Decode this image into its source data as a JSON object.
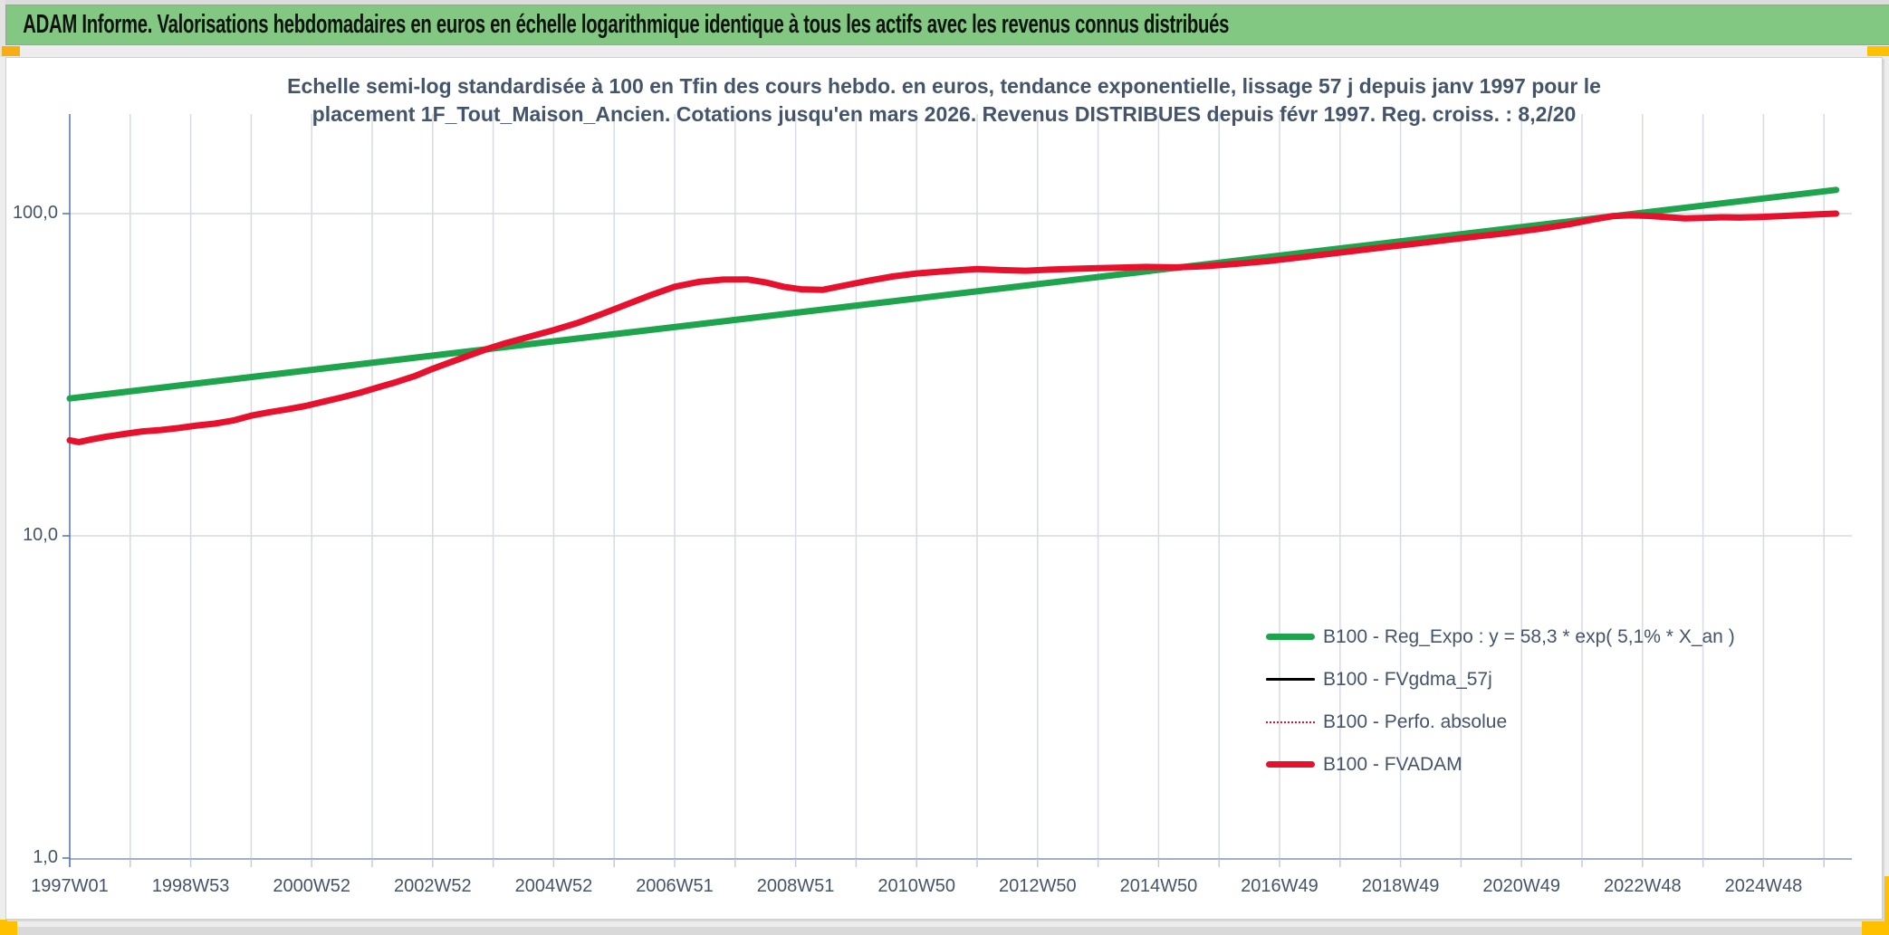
{
  "banner": {
    "text": "ADAM Informe. Valorisations hebdomadaires en euros en échelle logarithmique identique à tous les actifs avec les revenus connus distribués"
  },
  "colors": {
    "banner_bg": "#82C882",
    "accent_orange": "#F6AE13",
    "accent_yellow": "#FFC000",
    "chart_text": "#44546A",
    "axis_line": "#4E72B8",
    "x_axis_line": "#8496B0",
    "gridline": "#D6DBE4",
    "tick_minor": "#C3CCD9",
    "series_green": "#1EA44C",
    "series_red": "#E8112D",
    "series_black": "#000000"
  },
  "chart_data": {
    "type": "line",
    "title_line1": "Echelle semi-log standardisée à 100 en Tfin des cours hebdo. en euros, tendance exponentielle, lissage 57 j depuis janv 1997 pour le",
    "title_line2": "placement 1F_Tout_Maison_Ancien. Cotations jusqu'en mars 2026. Revenus DISTRIBUES depuis févr 1997. Reg. croiss. : 8,2/20",
    "xlabel": "",
    "ylabel": "",
    "grid": true,
    "legend_position": "inside-bottom-right",
    "x_axis": {
      "unit": "ISO week",
      "min_year": 1997.0,
      "max_year": 2026.3,
      "first_tick_year": 1997.0,
      "tick_step_years": 2,
      "gridline_step_years": 1,
      "tick_labels": [
        "1997W01",
        "1998W53",
        "2000W52",
        "2002W52",
        "2004W52",
        "2006W51",
        "2008W51",
        "2010W50",
        "2012W50",
        "2014W50",
        "2016W49",
        "2018W49",
        "2020W49",
        "2022W48",
        "2024W48"
      ]
    },
    "y_axis": {
      "scale": "log",
      "min": 1,
      "max": 200,
      "ticks": [
        {
          "label": "100,0",
          "value": 100
        },
        {
          "label": "10,0",
          "value": 10
        },
        {
          "label": "1,0",
          "value": 1
        }
      ]
    },
    "series": [
      {
        "id": "reg_expo",
        "label": "B100 - Reg_Expo : y = 58,3 * exp( 5,1% *  X_an )",
        "color": "#1EA44C",
        "width": 7,
        "line_style": "solid",
        "points": [
          [
            1997.0,
            26.7
          ],
          [
            2026.2,
            118.5
          ]
        ]
      },
      {
        "id": "fvgdma",
        "label": "B100 - FVgdma_57j",
        "color": "#000000",
        "width": 2.5,
        "line_style": "solid",
        "points_ref": "fvadam"
      },
      {
        "id": "perfo",
        "label": "B100 - Perfo. absolue",
        "color": "#E8112D",
        "width": 2,
        "line_style": "dotted",
        "points_ref": "fvadam"
      },
      {
        "id": "fvadam",
        "label": "B100 - FVADAM",
        "color": "#E8112D",
        "width": 7,
        "line_style": "solid",
        "points": [
          [
            1997.0,
            19.8
          ],
          [
            1997.15,
            19.55
          ],
          [
            1997.35,
            19.9
          ],
          [
            1997.6,
            20.3
          ],
          [
            1997.9,
            20.7
          ],
          [
            1998.2,
            21.1
          ],
          [
            1998.5,
            21.3
          ],
          [
            1998.8,
            21.6
          ],
          [
            1999.1,
            22.0
          ],
          [
            1999.4,
            22.3
          ],
          [
            1999.7,
            22.8
          ],
          [
            2000.0,
            23.6
          ],
          [
            2000.3,
            24.2
          ],
          [
            2000.6,
            24.7
          ],
          [
            2000.9,
            25.3
          ],
          [
            2001.2,
            26.1
          ],
          [
            2001.5,
            26.9
          ],
          [
            2001.8,
            27.8
          ],
          [
            2002.1,
            28.9
          ],
          [
            2002.4,
            30.0
          ],
          [
            2002.7,
            31.3
          ],
          [
            2003.0,
            33.0
          ],
          [
            2003.3,
            34.6
          ],
          [
            2003.6,
            36.3
          ],
          [
            2003.9,
            38.0
          ],
          [
            2004.2,
            39.6
          ],
          [
            2004.6,
            41.5
          ],
          [
            2005.0,
            43.5
          ],
          [
            2005.4,
            45.8
          ],
          [
            2005.8,
            48.8
          ],
          [
            2006.2,
            52.2
          ],
          [
            2006.6,
            55.8
          ],
          [
            2007.0,
            59.3
          ],
          [
            2007.4,
            61.4
          ],
          [
            2007.8,
            62.4
          ],
          [
            2008.2,
            62.5
          ],
          [
            2008.5,
            61.2
          ],
          [
            2008.8,
            59.3
          ],
          [
            2009.1,
            58.2
          ],
          [
            2009.45,
            58.0
          ],
          [
            2009.8,
            59.8
          ],
          [
            2010.2,
            61.9
          ],
          [
            2010.6,
            63.8
          ],
          [
            2011.0,
            65.2
          ],
          [
            2011.5,
            66.3
          ],
          [
            2012.0,
            67.3
          ],
          [
            2012.4,
            66.8
          ],
          [
            2012.8,
            66.5
          ],
          [
            2013.2,
            67.0
          ],
          [
            2013.6,
            67.4
          ],
          [
            2014.0,
            67.7
          ],
          [
            2014.4,
            68.0
          ],
          [
            2014.8,
            68.3
          ],
          [
            2015.3,
            68.1
          ],
          [
            2015.8,
            68.7
          ],
          [
            2016.3,
            69.9
          ],
          [
            2016.8,
            71.2
          ],
          [
            2017.3,
            73.0
          ],
          [
            2017.8,
            74.9
          ],
          [
            2018.3,
            76.9
          ],
          [
            2018.8,
            78.9
          ],
          [
            2019.3,
            80.9
          ],
          [
            2019.8,
            83.0
          ],
          [
            2020.3,
            85.1
          ],
          [
            2020.8,
            87.2
          ],
          [
            2021.3,
            89.7
          ],
          [
            2021.8,
            92.8
          ],
          [
            2022.2,
            96.0
          ],
          [
            2022.5,
            98.2
          ],
          [
            2022.8,
            98.8
          ],
          [
            2023.1,
            98.4
          ],
          [
            2023.4,
            97.5
          ],
          [
            2023.7,
            96.7
          ],
          [
            2024.0,
            97.0
          ],
          [
            2024.3,
            97.4
          ],
          [
            2024.6,
            97.2
          ],
          [
            2024.9,
            97.5
          ],
          [
            2025.2,
            98.1
          ],
          [
            2025.6,
            98.9
          ],
          [
            2025.95,
            99.6
          ],
          [
            2026.2,
            100.0
          ]
        ]
      }
    ]
  }
}
